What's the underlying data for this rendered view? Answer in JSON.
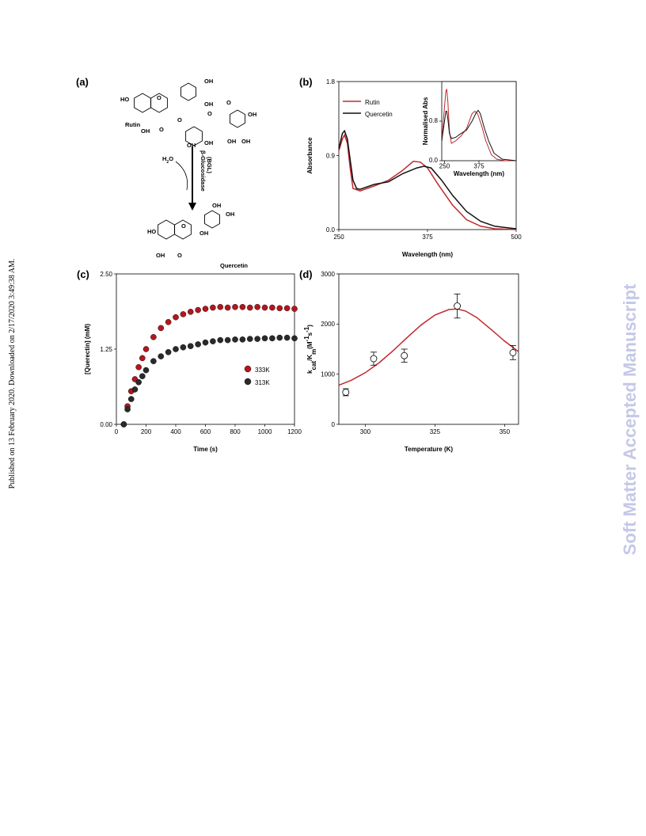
{
  "side_note": "Published on 13 February 2020. Downloaded on 2/17/2020 3:49:38 AM.",
  "watermark": "Soft Matter Accepted Manuscript",
  "panel_a": {
    "label": "(a)",
    "texts": [
      "HO",
      "O",
      "OH",
      "OH",
      "Rutin",
      "OH",
      "O",
      "O",
      "O",
      "O",
      "OH",
      "OH",
      "OH",
      "OH",
      "OH",
      "HO",
      "O",
      "OH",
      "OH",
      "OH",
      "O",
      "OH",
      "Quercetin"
    ],
    "water": [
      "H",
      "2",
      "O"
    ],
    "enzyme": "β-Glucosidase",
    "enzyme_abbr": "(BGL)"
  },
  "chart_data": [
    {
      "type": "line",
      "label": "(b)",
      "xlabel": "Wavelength (nm)",
      "ylabel": "Absorbance",
      "xlim": [
        250,
        500
      ],
      "xticks": [
        250,
        375,
        500
      ],
      "ylim": [
        0,
        1.8
      ],
      "yticks": [
        {
          "value": 0,
          "label": "0.0"
        },
        0.9,
        1.8
      ],
      "legend": "upper left",
      "series": [
        {
          "name": "Rutin",
          "color": "#c0282d",
          "x": [
            250,
            255,
            258,
            262,
            266,
            270,
            280,
            300,
            320,
            340,
            355,
            365,
            375,
            390,
            410,
            430,
            450,
            470,
            500
          ],
          "values": [
            0.96,
            1.1,
            1.15,
            1.05,
            0.75,
            0.5,
            0.47,
            0.53,
            0.6,
            0.72,
            0.83,
            0.82,
            0.75,
            0.55,
            0.3,
            0.12,
            0.04,
            0.01,
            0
          ]
        },
        {
          "name": "Quercetin",
          "color": "#111111",
          "x": [
            250,
            255,
            258,
            262,
            266,
            270,
            275,
            280,
            300,
            320,
            340,
            360,
            370,
            380,
            395,
            410,
            430,
            450,
            470,
            500
          ],
          "values": [
            0.98,
            1.17,
            1.2,
            1.1,
            0.85,
            0.6,
            0.5,
            0.49,
            0.55,
            0.58,
            0.68,
            0.75,
            0.77,
            0.75,
            0.6,
            0.42,
            0.22,
            0.1,
            0.04,
            0.01
          ]
        }
      ]
    },
    {
      "type": "line",
      "xlabel": "Wavelength (nm)",
      "ylabel": "Normalised Abs",
      "xlim": [
        240,
        510
      ],
      "xticks": [
        250,
        375
      ],
      "ylim": [
        0,
        1.6
      ],
      "yticks": [
        {
          "value": 0,
          "label": "0.0"
        },
        0.8
      ],
      "series": [
        {
          "name": "Rutin",
          "color": "#c0282d",
          "x": [
            240,
            250,
            255,
            258,
            262,
            268,
            275,
            290,
            310,
            330,
            350,
            360,
            370,
            385,
            400,
            420,
            440,
            470,
            510
          ],
          "values": [
            0.4,
            1.1,
            1.4,
            1.45,
            1.2,
            0.6,
            0.35,
            0.4,
            0.5,
            0.65,
            0.95,
            1.0,
            0.95,
            0.7,
            0.4,
            0.12,
            0.03,
            0,
            0
          ]
        },
        {
          "name": "Quercetin",
          "color": "#111111",
          "x": [
            240,
            250,
            255,
            258,
            262,
            268,
            275,
            290,
            310,
            330,
            350,
            365,
            372,
            380,
            395,
            410,
            430,
            460,
            510
          ],
          "values": [
            0.4,
            0.8,
            1.0,
            1.0,
            0.85,
            0.55,
            0.45,
            0.47,
            0.55,
            0.62,
            0.8,
            0.97,
            1.02,
            0.95,
            0.65,
            0.4,
            0.15,
            0.03,
            0
          ]
        }
      ]
    },
    {
      "type": "scatter",
      "label": "(c)",
      "xlabel": "Time (s)",
      "ylabel": "[Querectin] (mM)",
      "xlim": [
        0,
        1200
      ],
      "xticks": [
        0,
        200,
        400,
        600,
        800,
        1000,
        1200
      ],
      "ylim": [
        0,
        2.5
      ],
      "yticks": [
        {
          "value": 0,
          "label": "0.00"
        },
        1.25,
        {
          "value": 2.5,
          "label": "2.50"
        }
      ],
      "legend": "center right",
      "x": [
        50,
        75,
        100,
        125,
        150,
        175,
        200,
        250,
        300,
        350,
        400,
        450,
        500,
        550,
        600,
        650,
        700,
        750,
        800,
        850,
        900,
        950,
        1000,
        1050,
        1100,
        1150,
        1200
      ],
      "series": [
        {
          "name": "333K",
          "color": "#b3161c",
          "values": [
            0,
            0.3,
            0.55,
            0.75,
            0.95,
            1.1,
            1.25,
            1.45,
            1.6,
            1.7,
            1.78,
            1.83,
            1.87,
            1.9,
            1.92,
            1.94,
            1.95,
            1.94,
            1.95,
            1.95,
            1.94,
            1.95,
            1.94,
            1.94,
            1.93,
            1.93,
            1.92
          ]
        },
        {
          "name": "313K",
          "color": "#2a2a2a",
          "values": [
            0,
            0.25,
            0.42,
            0.58,
            0.7,
            0.8,
            0.9,
            1.05,
            1.13,
            1.2,
            1.25,
            1.28,
            1.3,
            1.33,
            1.36,
            1.38,
            1.4,
            1.4,
            1.41,
            1.41,
            1.42,
            1.42,
            1.43,
            1.43,
            1.44,
            1.44,
            1.43
          ]
        }
      ]
    },
    {
      "type": "errorscatter",
      "label": "(d)",
      "xlabel": "Temperature (K)",
      "ylabel_parts": [
        {
          "text": "k"
        },
        {
          "text": "cat",
          "sub": true
        },
        {
          "text": "/K"
        },
        {
          "text": "m",
          "sub": true
        },
        {
          "text": "(M"
        },
        {
          "text": "-1",
          "sup": true
        },
        {
          "text": "s"
        },
        {
          "text": "-1",
          "sup": true
        },
        {
          "text": ")"
        }
      ],
      "xlim": [
        290.5,
        355
      ],
      "xticks": [
        300,
        325,
        350
      ],
      "ylim": [
        0,
        3000
      ],
      "yticks": [
        0,
        1000,
        2000,
        3000
      ],
      "x": [
        293,
        303,
        314,
        333,
        353
      ],
      "values": [
        640,
        1310,
        1370,
        2360,
        1430
      ],
      "errors": [
        70,
        130,
        130,
        240,
        140
      ],
      "color": "#000000",
      "fit": {
        "color": "#c0282d",
        "x": [
          290.5,
          295,
          300,
          305,
          310,
          315,
          320,
          325,
          330,
          333,
          336,
          340,
          345,
          350,
          355
        ],
        "values": [
          780,
          880,
          1030,
          1230,
          1470,
          1730,
          1980,
          2180,
          2290,
          2300,
          2260,
          2130,
          1900,
          1660,
          1450
        ]
      }
    }
  ]
}
